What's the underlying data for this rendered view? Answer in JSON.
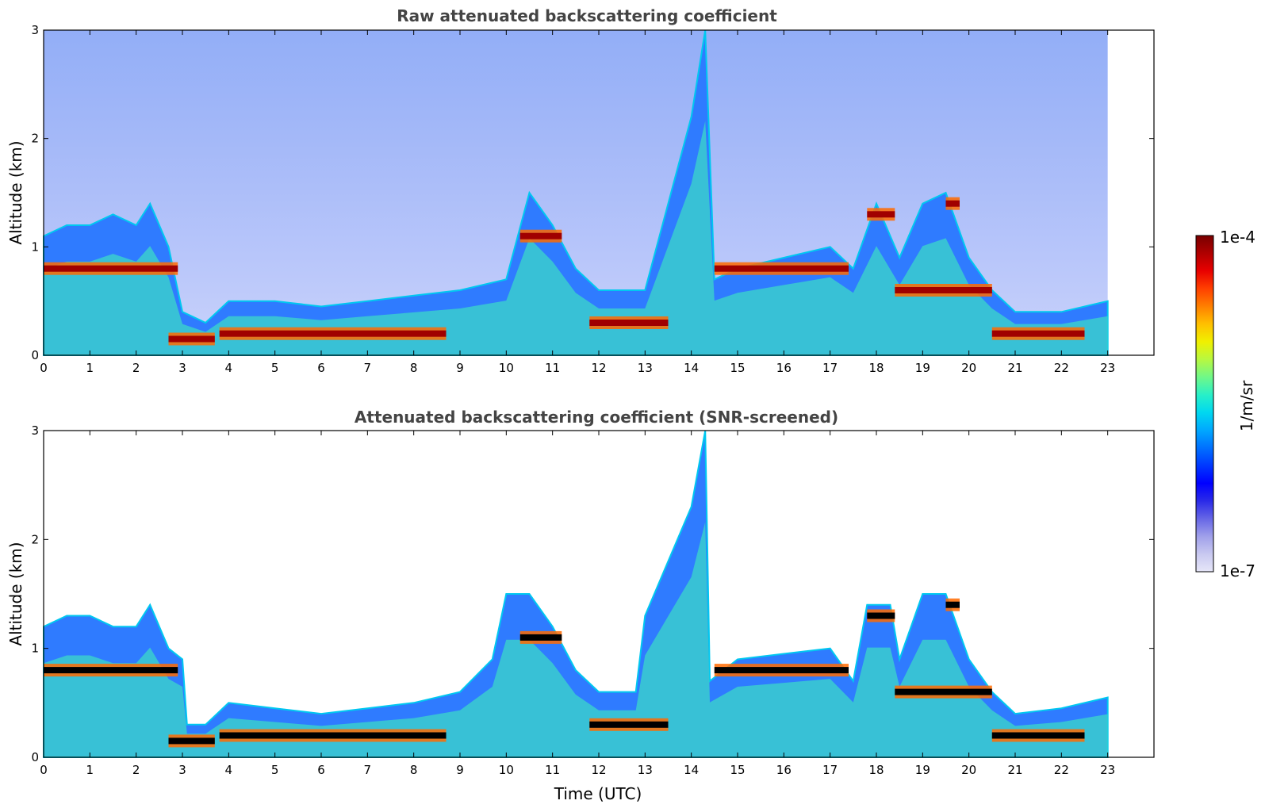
{
  "chart_data": [
    {
      "type": "heatmap",
      "title": "Raw attenuated backscattering coefficient",
      "xlabel": "",
      "ylabel": "Altitude (km)",
      "xlim": [
        0,
        24
      ],
      "ylim": [
        0,
        3
      ],
      "xticks": [
        "0",
        "1",
        "2",
        "3",
        "4",
        "5",
        "6",
        "7",
        "8",
        "9",
        "10",
        "11",
        "12",
        "13",
        "14",
        "15",
        "16",
        "17",
        "18",
        "19",
        "20",
        "21",
        "22",
        "23"
      ],
      "yticks": [
        "0",
        "1",
        "2",
        "3"
      ],
      "data_end_hour": 23,
      "boundary_layer_top_km": [
        [
          0,
          1.1
        ],
        [
          0.5,
          1.2
        ],
        [
          1,
          1.2
        ],
        [
          1.5,
          1.3
        ],
        [
          2,
          1.2
        ],
        [
          2.3,
          1.4
        ],
        [
          2.7,
          1.0
        ],
        [
          3,
          0.4
        ],
        [
          3.5,
          0.3
        ],
        [
          4,
          0.5
        ],
        [
          5,
          0.5
        ],
        [
          6,
          0.45
        ],
        [
          7,
          0.5
        ],
        [
          8,
          0.55
        ],
        [
          9,
          0.6
        ],
        [
          10,
          0.7
        ],
        [
          10.5,
          1.5
        ],
        [
          11,
          1.2
        ],
        [
          11.5,
          0.8
        ],
        [
          12,
          0.6
        ],
        [
          13,
          0.6
        ],
        [
          13.5,
          1.4
        ],
        [
          14,
          2.2
        ],
        [
          14.3,
          3.0
        ],
        [
          14.5,
          0.7
        ],
        [
          15,
          0.8
        ],
        [
          16,
          0.9
        ],
        [
          17,
          1.0
        ],
        [
          17.5,
          0.8
        ],
        [
          18,
          1.4
        ],
        [
          18.5,
          0.9
        ],
        [
          19,
          1.4
        ],
        [
          19.5,
          1.5
        ],
        [
          20,
          0.9
        ],
        [
          20.5,
          0.6
        ],
        [
          21,
          0.4
        ],
        [
          22,
          0.4
        ],
        [
          23,
          0.5
        ]
      ],
      "high_backscatter_layers": [
        {
          "t_start": 0,
          "t_end": 2.9,
          "alt_km": 0.8
        },
        {
          "t_start": 2.7,
          "t_end": 3.7,
          "alt_km": 0.15
        },
        {
          "t_start": 3.8,
          "t_end": 8.7,
          "alt_km": 0.2
        },
        {
          "t_start": 10.3,
          "t_end": 11.2,
          "alt_km": 1.1
        },
        {
          "t_start": 11.8,
          "t_end": 13.5,
          "alt_km": 0.3
        },
        {
          "t_start": 14.5,
          "t_end": 17.4,
          "alt_km": 0.8
        },
        {
          "t_start": 17.8,
          "t_end": 18.4,
          "alt_km": 1.3
        },
        {
          "t_start": 18.4,
          "t_end": 20.5,
          "alt_km": 0.6
        },
        {
          "t_start": 19.5,
          "t_end": 19.8,
          "alt_km": 1.4
        },
        {
          "t_start": 20.5,
          "t_end": 22.5,
          "alt_km": 0.2
        }
      ]
    },
    {
      "type": "heatmap",
      "title": "Attenuated backscattering coefficient (SNR-screened)",
      "xlabel": "Time (UTC)",
      "ylabel": "Altitude (km)",
      "xlim": [
        0,
        24
      ],
      "ylim": [
        0,
        3
      ],
      "xticks": [
        "0",
        "1",
        "2",
        "3",
        "4",
        "5",
        "6",
        "7",
        "8",
        "9",
        "10",
        "11",
        "12",
        "13",
        "14",
        "15",
        "16",
        "17",
        "18",
        "19",
        "20",
        "21",
        "22",
        "23"
      ],
      "yticks": [
        "0",
        "1",
        "2",
        "3"
      ],
      "data_end_hour": 23,
      "boundary_layer_top_km": [
        [
          0,
          1.2
        ],
        [
          0.5,
          1.3
        ],
        [
          1,
          1.3
        ],
        [
          1.5,
          1.2
        ],
        [
          2,
          1.2
        ],
        [
          2.3,
          1.4
        ],
        [
          2.7,
          1.0
        ],
        [
          3,
          0.9
        ],
        [
          3.1,
          0.3
        ],
        [
          3.5,
          0.3
        ],
        [
          4,
          0.5
        ],
        [
          5,
          0.45
        ],
        [
          6,
          0.4
        ],
        [
          7,
          0.45
        ],
        [
          8,
          0.5
        ],
        [
          9,
          0.6
        ],
        [
          9.7,
          0.9
        ],
        [
          10,
          1.5
        ],
        [
          10.5,
          1.5
        ],
        [
          11,
          1.2
        ],
        [
          11.5,
          0.8
        ],
        [
          12,
          0.6
        ],
        [
          12.8,
          0.6
        ],
        [
          13,
          1.3
        ],
        [
          13.5,
          1.8
        ],
        [
          14,
          2.3
        ],
        [
          14.3,
          3.0
        ],
        [
          14.4,
          0.7
        ],
        [
          15,
          0.9
        ],
        [
          16,
          0.95
        ],
        [
          17,
          1.0
        ],
        [
          17.5,
          0.7
        ],
        [
          17.8,
          1.4
        ],
        [
          18.3,
          1.4
        ],
        [
          18.5,
          0.9
        ],
        [
          19,
          1.5
        ],
        [
          19.5,
          1.5
        ],
        [
          20,
          0.9
        ],
        [
          20.5,
          0.6
        ],
        [
          21,
          0.4
        ],
        [
          22,
          0.45
        ],
        [
          23,
          0.55
        ]
      ]
    }
  ],
  "colorbar": {
    "label": "1/m/sr",
    "max_label": "1e-4",
    "min_label": "1e-7",
    "colors": [
      "#e6e6f8",
      "#c8c8f0",
      "#a0a0ea",
      "#6666e6",
      "#2a2ae8",
      "#0000ff",
      "#0038ff",
      "#0070ff",
      "#00a8ff",
      "#00d8f0",
      "#28f0c8",
      "#70f888",
      "#b8f840",
      "#f0f000",
      "#ffc000",
      "#ff8000",
      "#ff4000",
      "#e80000",
      "#b00000",
      "#780000"
    ]
  }
}
